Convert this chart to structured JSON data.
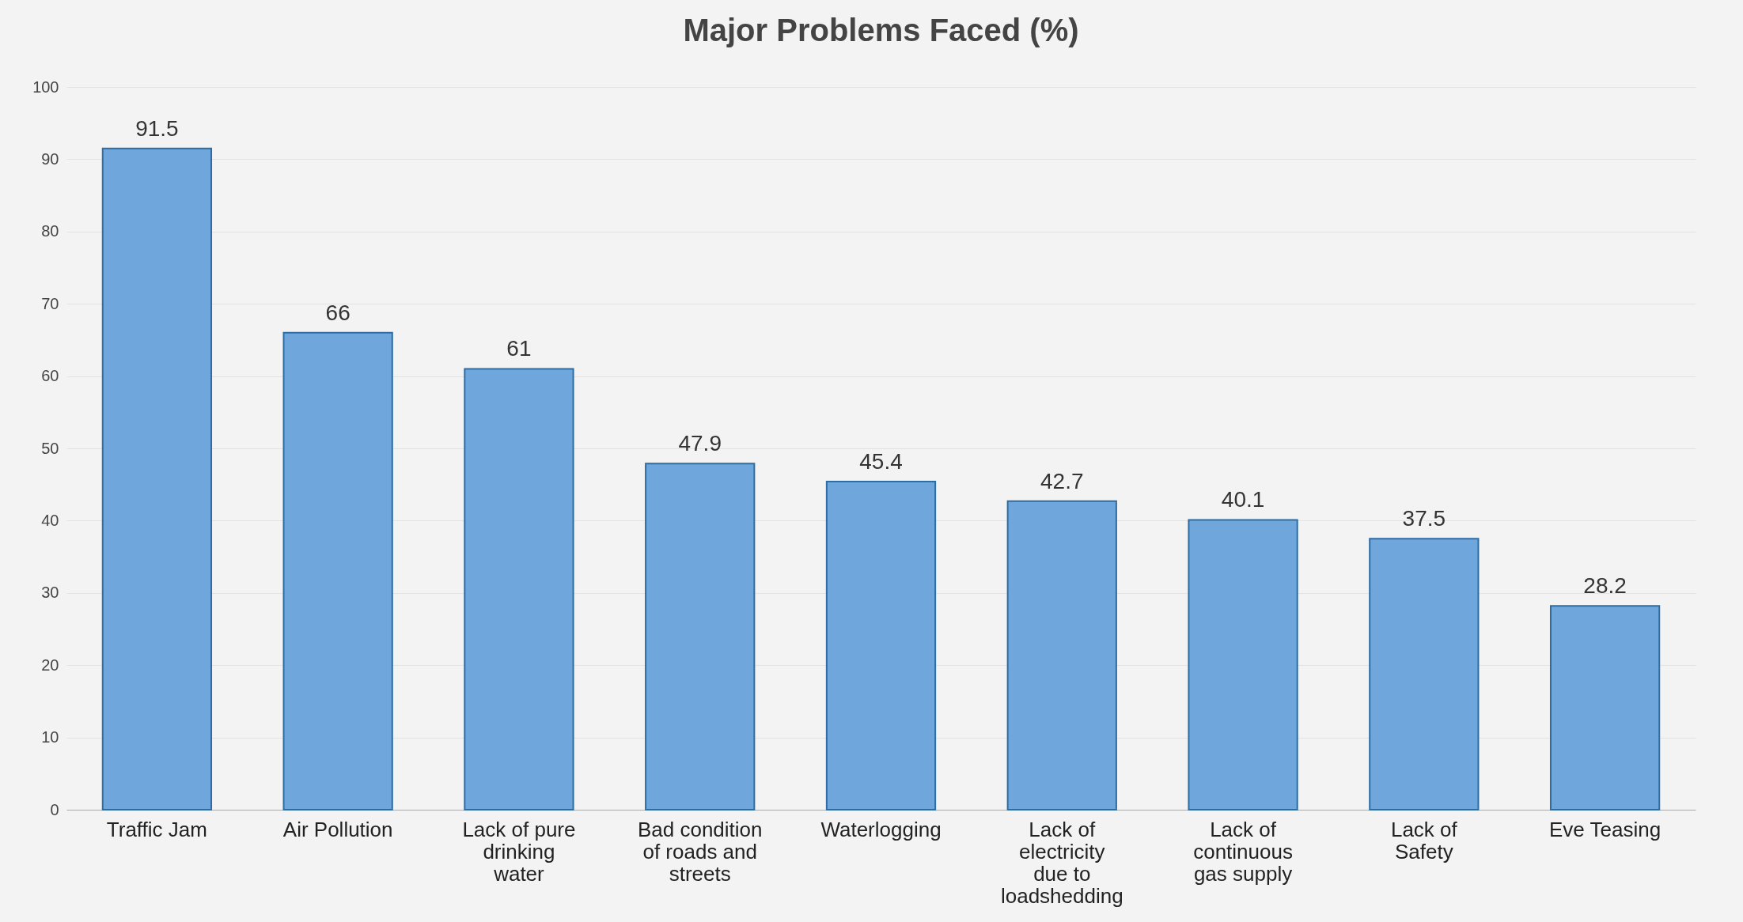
{
  "chart_data": {
    "type": "bar",
    "title": "Major Problems Faced (%)",
    "categories": [
      "Traffic Jam",
      "Air Pollution",
      "Lack of pure drinking water",
      "Bad condition of roads and streets",
      "Waterlogging",
      "Lack of electricity due to loadshedding",
      "Lack of continuous gas supply",
      "Lack of Safety",
      "Eve Teasing"
    ],
    "values": [
      91.5,
      66,
      61,
      47.9,
      45.4,
      42.7,
      40.1,
      37.5,
      28.2
    ],
    "color": "#6fa6dc",
    "ylim": [
      0,
      100
    ],
    "yticks": [
      0,
      10,
      20,
      30,
      40,
      50,
      60,
      70,
      80,
      90,
      100
    ],
    "grid": "y",
    "data_labels": true
  }
}
